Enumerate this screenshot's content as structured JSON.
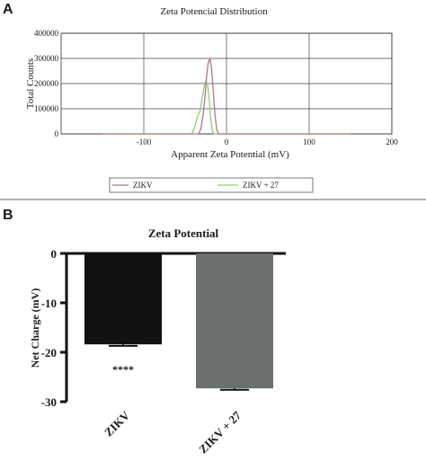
{
  "panel_a": {
    "letter": "A",
    "legend": [
      {
        "name": "ZIKV",
        "color": "#a87a84"
      },
      {
        "name": "ZIKV + 27",
        "color": "#8ed071"
      }
    ]
  },
  "panel_b": {
    "letter": "B",
    "significance": "****"
  },
  "chart_data": [
    {
      "type": "line",
      "title": "Zeta Potencial Distribution",
      "xlabel": "Apparent Zeta Potential (mV)",
      "ylabel": "Total Counts",
      "xlim": [
        -200,
        200
      ],
      "ylim": [
        0,
        400000
      ],
      "xticks": [
        -100,
        0,
        100,
        200
      ],
      "yticks": [
        0,
        100000,
        200000,
        300000,
        400000
      ],
      "xtick_labels": [
        "-100",
        "0",
        "100",
        "200"
      ],
      "ytick_labels": [
        "0",
        "100000",
        "200000",
        "300000",
        "400000"
      ],
      "grid": true,
      "legend_position": "bottom",
      "series": [
        {
          "name": "ZIKV",
          "color": "#a87a84",
          "points": [
            [
              -150,
              0
            ],
            [
              -34,
              0
            ],
            [
              -31,
              20000
            ],
            [
              -28,
              80000
            ],
            [
              -26,
              150000
            ],
            [
              -24,
              230000
            ],
            [
              -22,
              285000
            ],
            [
              -20,
              300000
            ],
            [
              -18,
              260000
            ],
            [
              -16,
              170000
            ],
            [
              -14,
              80000
            ],
            [
              -12,
              20000
            ],
            [
              -10,
              0
            ],
            [
              150,
              0
            ]
          ]
        },
        {
          "name": "ZIKV + 27",
          "color": "#8ed071",
          "points": [
            [
              -150,
              0
            ],
            [
              -42,
              0
            ],
            [
              -38,
              30000
            ],
            [
              -35,
              70000
            ],
            [
              -32,
              90000
            ],
            [
              -30,
              130000
            ],
            [
              -27,
              190000
            ],
            [
              -25,
              210000
            ],
            [
              -23,
              200000
            ],
            [
              -21,
              140000
            ],
            [
              -19,
              60000
            ],
            [
              -17,
              10000
            ],
            [
              -15,
              0
            ],
            [
              150,
              0
            ]
          ]
        }
      ]
    },
    {
      "type": "bar",
      "title": "Zeta Potential",
      "xlabel": "",
      "ylabel": "Net Charge (mV)",
      "ylim": [
        -30,
        0
      ],
      "yticks": [
        0,
        -10,
        -20,
        -30
      ],
      "ytick_labels": [
        "0",
        "-10",
        "-20",
        "-30"
      ],
      "categories": [
        "ZIKV",
        "ZIKV + 27"
      ],
      "values": [
        -18.4,
        -27.3
      ],
      "errors": [
        0.3,
        0.3
      ],
      "colors": [
        "#111111",
        "#6b6f6f"
      ],
      "grid": false
    }
  ]
}
